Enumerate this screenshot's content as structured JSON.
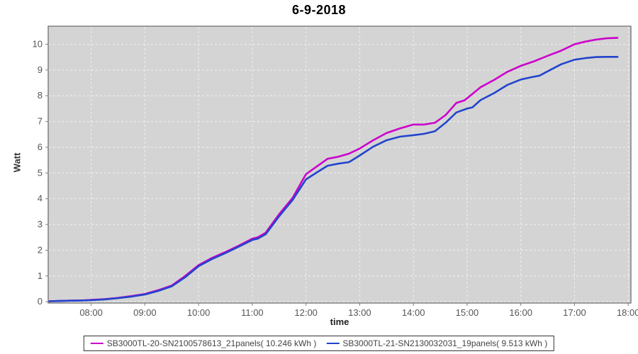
{
  "title": "6-9-2018",
  "colors": {
    "series1": "#cc00cc",
    "series2": "#2244cc",
    "plot_bg": "#d4d4d4",
    "grid": "#f0f0f0",
    "plot_border": "#808080",
    "tick_label": "#555555",
    "axis_label": "#333333",
    "legend_border": "#333333",
    "legend_text": "#444444"
  },
  "chart_data": {
    "type": "line",
    "title": "6-9-2018",
    "xlabel": "time",
    "ylabel": "Watt",
    "grid": true,
    "legend_position": "bottom",
    "x_range_hours": [
      7.2,
      18.05
    ],
    "y_range": [
      -0.05,
      10.7
    ],
    "x_tick_hours": [
      8,
      9,
      10,
      11,
      12,
      13,
      14,
      15,
      16,
      17,
      18
    ],
    "x_tick_labels": [
      "08:00",
      "09:00",
      "10:00",
      "11:00",
      "12:00",
      "13:00",
      "14:00",
      "15:00",
      "16:00",
      "17:00",
      "18:00"
    ],
    "y_tick_values": [
      0,
      1,
      2,
      3,
      4,
      5,
      6,
      7,
      8,
      9,
      10
    ],
    "y_tick_labels": [
      "0",
      "1",
      "2",
      "3",
      "4",
      "5",
      "6",
      "7",
      "8",
      "9",
      "10"
    ],
    "series": [
      {
        "name": "SB3000TL-20-SN2100578613_21panels( 10.246 kWh )",
        "color": "#cc00cc",
        "total_kwh": "10.246",
        "points": [
          [
            7.22,
            0.02
          ],
          [
            7.4,
            0.03
          ],
          [
            7.6,
            0.04
          ],
          [
            7.8,
            0.05
          ],
          [
            8.0,
            0.07
          ],
          [
            8.25,
            0.1
          ],
          [
            8.5,
            0.15
          ],
          [
            8.75,
            0.22
          ],
          [
            9.0,
            0.3
          ],
          [
            9.25,
            0.45
          ],
          [
            9.5,
            0.63
          ],
          [
            9.75,
            1.0
          ],
          [
            10.0,
            1.42
          ],
          [
            10.25,
            1.7
          ],
          [
            10.5,
            1.93
          ],
          [
            10.75,
            2.18
          ],
          [
            11.0,
            2.45
          ],
          [
            11.1,
            2.5
          ],
          [
            11.25,
            2.68
          ],
          [
            11.5,
            3.4
          ],
          [
            11.75,
            4.03
          ],
          [
            12.0,
            4.95
          ],
          [
            12.2,
            5.25
          ],
          [
            12.4,
            5.55
          ],
          [
            12.6,
            5.63
          ],
          [
            12.8,
            5.75
          ],
          [
            13.0,
            5.95
          ],
          [
            13.25,
            6.27
          ],
          [
            13.5,
            6.55
          ],
          [
            13.75,
            6.73
          ],
          [
            14.0,
            6.88
          ],
          [
            14.2,
            6.88
          ],
          [
            14.4,
            6.95
          ],
          [
            14.6,
            7.25
          ],
          [
            14.8,
            7.72
          ],
          [
            14.95,
            7.82
          ],
          [
            15.0,
            7.9
          ],
          [
            15.25,
            8.33
          ],
          [
            15.5,
            8.61
          ],
          [
            15.75,
            8.93
          ],
          [
            16.0,
            9.16
          ],
          [
            16.25,
            9.34
          ],
          [
            16.5,
            9.55
          ],
          [
            16.75,
            9.75
          ],
          [
            17.0,
            10.0
          ],
          [
            17.2,
            10.1
          ],
          [
            17.4,
            10.18
          ],
          [
            17.6,
            10.23
          ],
          [
            17.8,
            10.25
          ]
        ]
      },
      {
        "name": "SB3000TL-21-SN2130032031_19panels( 9.513 kWh )",
        "color": "#2244cc",
        "total_kwh": "9.513",
        "points": [
          [
            7.22,
            0.02
          ],
          [
            7.4,
            0.03
          ],
          [
            7.6,
            0.04
          ],
          [
            7.8,
            0.05
          ],
          [
            8.0,
            0.06
          ],
          [
            8.25,
            0.09
          ],
          [
            8.5,
            0.14
          ],
          [
            8.75,
            0.2
          ],
          [
            9.0,
            0.28
          ],
          [
            9.25,
            0.42
          ],
          [
            9.5,
            0.6
          ],
          [
            9.75,
            0.95
          ],
          [
            10.0,
            1.38
          ],
          [
            10.25,
            1.66
          ],
          [
            10.5,
            1.89
          ],
          [
            10.75,
            2.14
          ],
          [
            11.0,
            2.4
          ],
          [
            11.1,
            2.45
          ],
          [
            11.25,
            2.62
          ],
          [
            11.5,
            3.32
          ],
          [
            11.75,
            3.95
          ],
          [
            12.0,
            4.75
          ],
          [
            12.2,
            5.02
          ],
          [
            12.4,
            5.28
          ],
          [
            12.6,
            5.36
          ],
          [
            12.8,
            5.42
          ],
          [
            13.0,
            5.68
          ],
          [
            13.25,
            6.02
          ],
          [
            13.5,
            6.27
          ],
          [
            13.75,
            6.41
          ],
          [
            14.0,
            6.47
          ],
          [
            14.2,
            6.52
          ],
          [
            14.4,
            6.62
          ],
          [
            14.6,
            6.95
          ],
          [
            14.8,
            7.35
          ],
          [
            15.0,
            7.5
          ],
          [
            15.1,
            7.55
          ],
          [
            15.25,
            7.83
          ],
          [
            15.5,
            8.1
          ],
          [
            15.75,
            8.42
          ],
          [
            16.0,
            8.63
          ],
          [
            16.2,
            8.72
          ],
          [
            16.35,
            8.78
          ],
          [
            16.5,
            8.95
          ],
          [
            16.75,
            9.22
          ],
          [
            17.0,
            9.4
          ],
          [
            17.2,
            9.46
          ],
          [
            17.4,
            9.5
          ],
          [
            17.6,
            9.51
          ],
          [
            17.8,
            9.51
          ]
        ]
      }
    ]
  }
}
